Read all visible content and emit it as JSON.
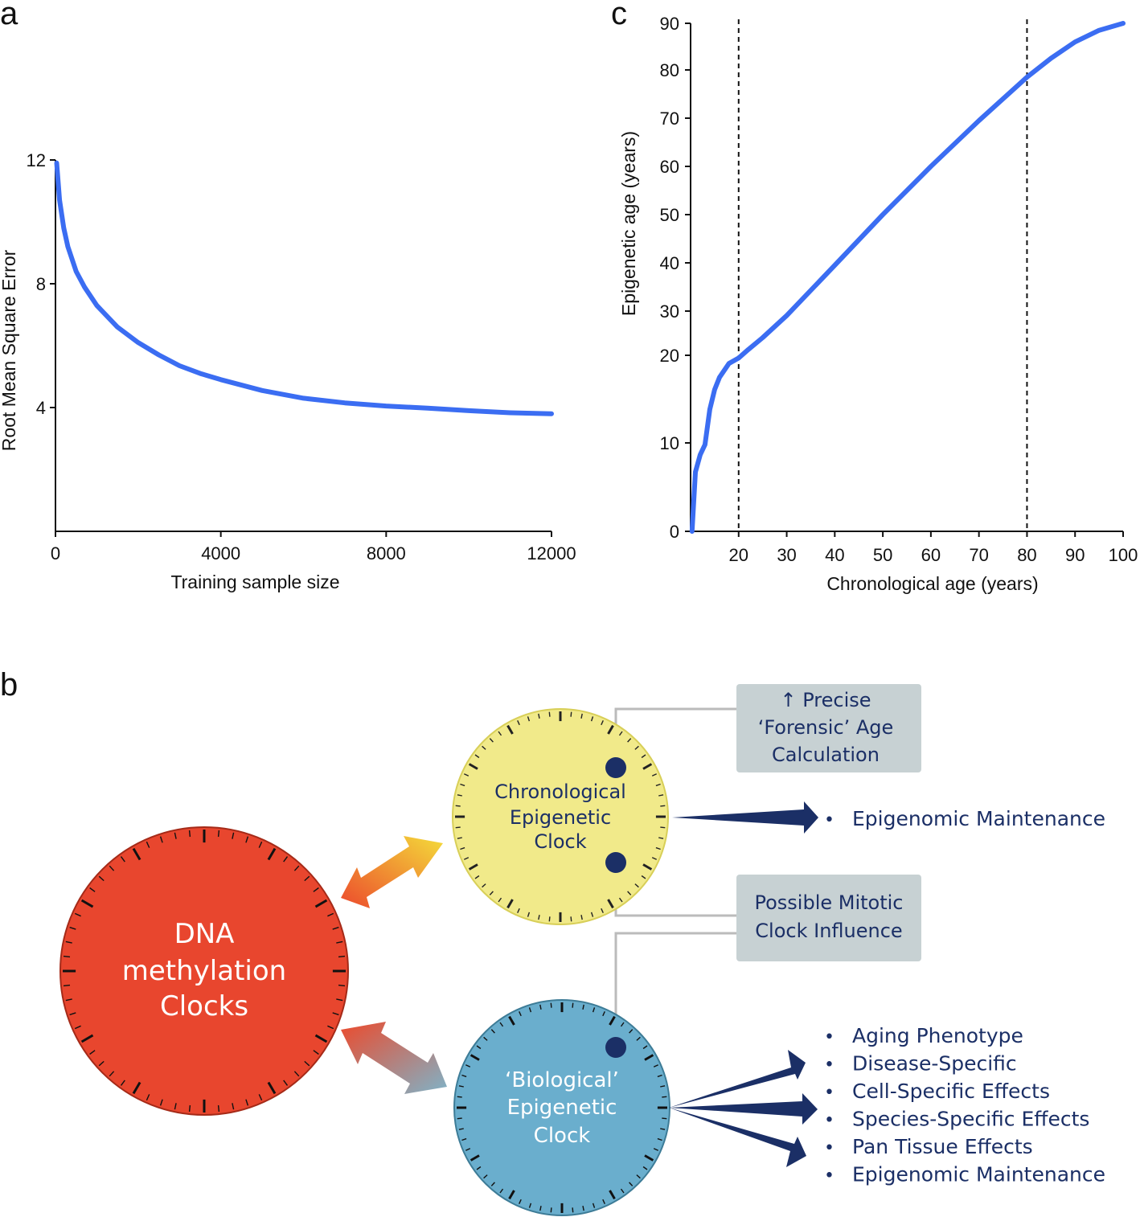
{
  "colors": {
    "curve": "#3b6df2",
    "dna_clock": "#e8462e",
    "chrono_clock": "#f1ea8a",
    "bio_clock": "#6aaecd",
    "navy": "#1b2f66",
    "label_box": "#c7d1d3",
    "connector": "#bbbbbb"
  },
  "chart_data": [
    {
      "panel": "a",
      "type": "line",
      "title": "",
      "xlabel": "Training sample size",
      "ylabel": "Root Mean Square Error",
      "xlim": [
        0,
        12000
      ],
      "ylim": [
        0,
        12
      ],
      "xticks": [
        "0",
        "4000",
        "8000",
        "12000"
      ],
      "yticks": [
        "4",
        "8",
        "12"
      ],
      "series": [
        {
          "x": [
            30,
            100,
            200,
            300,
            500,
            700,
            1000,
            1500,
            2000,
            2500,
            3000,
            3500,
            4000,
            5000,
            6000,
            7000,
            8000,
            9000,
            10000,
            11000,
            12000
          ],
          "y": [
            11.9,
            10.7,
            9.8,
            9.2,
            8.4,
            7.9,
            7.3,
            6.6,
            6.1,
            5.7,
            5.35,
            5.1,
            4.9,
            4.55,
            4.3,
            4.15,
            4.05,
            3.98,
            3.9,
            3.83,
            3.8
          ]
        }
      ]
    },
    {
      "panel": "c",
      "type": "line",
      "title": "",
      "xlabel": "Chronological age (years)",
      "ylabel": "Epigenetic age (years)",
      "xlim": [
        10,
        100
      ],
      "ylim": [
        0,
        90
      ],
      "y_scale": "log-transformed below 20 (ticks 0, 10, 20 compressed), linear above",
      "xticks": [
        "20",
        "30",
        "40",
        "50",
        "60",
        "70",
        "80",
        "90",
        "100"
      ],
      "yticks": [
        "0",
        "10",
        "20",
        "30",
        "40",
        "50",
        "60",
        "70",
        "80",
        "90"
      ],
      "vlines": [
        20,
        80
      ],
      "series": [
        {
          "x": [
            10.3,
            11,
            12,
            13,
            14,
            15,
            16,
            18,
            20,
            22,
            25,
            30,
            40,
            50,
            60,
            70,
            80,
            85,
            90,
            95,
            100
          ],
          "y": [
            0,
            4,
            7,
            9.5,
            11.5,
            13.3,
            15,
            17.8,
            19.2,
            21.3,
            24,
            29,
            39.5,
            50,
            60,
            69.5,
            78.5,
            82.5,
            86,
            88.5,
            90
          ]
        }
      ]
    }
  ],
  "diagram": {
    "panel_label": "b",
    "dna_clock": [
      "DNA",
      "methylation",
      "Clocks"
    ],
    "chrono_clock": [
      "Chronological",
      "Epigenetic",
      "Clock"
    ],
    "bio_clock": [
      "‘Biological’",
      "Epigenetic",
      "Clock"
    ],
    "box_forensic": [
      "↑ Precise",
      "‘Forensic’ Age",
      "Calculation"
    ],
    "box_mitotic": [
      "Possible Mitotic",
      "Clock Influence"
    ],
    "bullet": "•",
    "chrono_outputs": [
      "Epigenomic Maintenance"
    ],
    "bio_outputs": [
      "Aging Phenotype",
      "Disease-Specific",
      "Cell-Specific Effects",
      "Species-Specific Effects",
      "Pan Tissue Effects",
      "Epigenomic Maintenance"
    ]
  }
}
